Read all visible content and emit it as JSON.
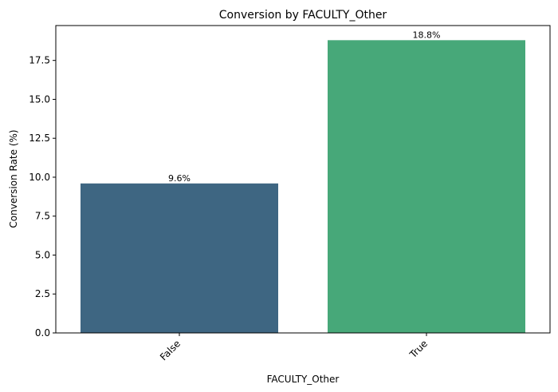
{
  "chart_data": {
    "type": "bar",
    "title": "Conversion by FACULTY_Other",
    "xlabel": "FACULTY_Other",
    "ylabel": "Conversion Rate (%)",
    "categories": [
      "False",
      "True"
    ],
    "values": [
      9.6,
      18.8
    ],
    "data_labels": [
      "9.6%",
      "18.8%"
    ],
    "colors": [
      "#3e6682",
      "#47a879"
    ],
    "ylim": [
      0,
      19.74
    ],
    "yticks": [
      0.0,
      2.5,
      5.0,
      7.5,
      10.0,
      12.5,
      15.0,
      17.5
    ],
    "ytick_labels": [
      "0.0",
      "2.5",
      "5.0",
      "7.5",
      "10.0",
      "12.5",
      "15.0",
      "17.5"
    ],
    "grid": false,
    "legend": "none"
  }
}
